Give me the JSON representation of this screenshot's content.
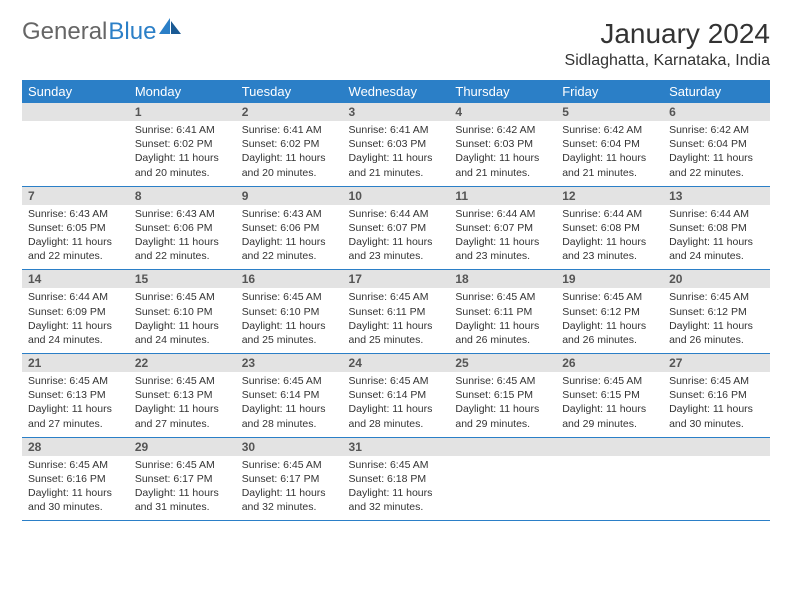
{
  "logo": {
    "general": "General",
    "blue": "Blue"
  },
  "title": "January 2024",
  "location": "Sidlaghatta, Karnataka, India",
  "colors": {
    "header_bg": "#2b7fc7",
    "header_text": "#ffffff",
    "daynum_bg": "#e3e3e3",
    "row_border": "#2b7fc7",
    "text": "#333333",
    "logo_blue": "#2b7fc7",
    "logo_gray": "#666666"
  },
  "day_names": [
    "Sunday",
    "Monday",
    "Tuesday",
    "Wednesday",
    "Thursday",
    "Friday",
    "Saturday"
  ],
  "weeks": [
    [
      {
        "n": "",
        "sr": "",
        "ss": "",
        "dl": ""
      },
      {
        "n": "1",
        "sr": "6:41 AM",
        "ss": "6:02 PM",
        "dl": "11 hours and 20 minutes."
      },
      {
        "n": "2",
        "sr": "6:41 AM",
        "ss": "6:02 PM",
        "dl": "11 hours and 20 minutes."
      },
      {
        "n": "3",
        "sr": "6:41 AM",
        "ss": "6:03 PM",
        "dl": "11 hours and 21 minutes."
      },
      {
        "n": "4",
        "sr": "6:42 AM",
        "ss": "6:03 PM",
        "dl": "11 hours and 21 minutes."
      },
      {
        "n": "5",
        "sr": "6:42 AM",
        "ss": "6:04 PM",
        "dl": "11 hours and 21 minutes."
      },
      {
        "n": "6",
        "sr": "6:42 AM",
        "ss": "6:04 PM",
        "dl": "11 hours and 22 minutes."
      }
    ],
    [
      {
        "n": "7",
        "sr": "6:43 AM",
        "ss": "6:05 PM",
        "dl": "11 hours and 22 minutes."
      },
      {
        "n": "8",
        "sr": "6:43 AM",
        "ss": "6:06 PM",
        "dl": "11 hours and 22 minutes."
      },
      {
        "n": "9",
        "sr": "6:43 AM",
        "ss": "6:06 PM",
        "dl": "11 hours and 22 minutes."
      },
      {
        "n": "10",
        "sr": "6:44 AM",
        "ss": "6:07 PM",
        "dl": "11 hours and 23 minutes."
      },
      {
        "n": "11",
        "sr": "6:44 AM",
        "ss": "6:07 PM",
        "dl": "11 hours and 23 minutes."
      },
      {
        "n": "12",
        "sr": "6:44 AM",
        "ss": "6:08 PM",
        "dl": "11 hours and 23 minutes."
      },
      {
        "n": "13",
        "sr": "6:44 AM",
        "ss": "6:08 PM",
        "dl": "11 hours and 24 minutes."
      }
    ],
    [
      {
        "n": "14",
        "sr": "6:44 AM",
        "ss": "6:09 PM",
        "dl": "11 hours and 24 minutes."
      },
      {
        "n": "15",
        "sr": "6:45 AM",
        "ss": "6:10 PM",
        "dl": "11 hours and 24 minutes."
      },
      {
        "n": "16",
        "sr": "6:45 AM",
        "ss": "6:10 PM",
        "dl": "11 hours and 25 minutes."
      },
      {
        "n": "17",
        "sr": "6:45 AM",
        "ss": "6:11 PM",
        "dl": "11 hours and 25 minutes."
      },
      {
        "n": "18",
        "sr": "6:45 AM",
        "ss": "6:11 PM",
        "dl": "11 hours and 26 minutes."
      },
      {
        "n": "19",
        "sr": "6:45 AM",
        "ss": "6:12 PM",
        "dl": "11 hours and 26 minutes."
      },
      {
        "n": "20",
        "sr": "6:45 AM",
        "ss": "6:12 PM",
        "dl": "11 hours and 26 minutes."
      }
    ],
    [
      {
        "n": "21",
        "sr": "6:45 AM",
        "ss": "6:13 PM",
        "dl": "11 hours and 27 minutes."
      },
      {
        "n": "22",
        "sr": "6:45 AM",
        "ss": "6:13 PM",
        "dl": "11 hours and 27 minutes."
      },
      {
        "n": "23",
        "sr": "6:45 AM",
        "ss": "6:14 PM",
        "dl": "11 hours and 28 minutes."
      },
      {
        "n": "24",
        "sr": "6:45 AM",
        "ss": "6:14 PM",
        "dl": "11 hours and 28 minutes."
      },
      {
        "n": "25",
        "sr": "6:45 AM",
        "ss": "6:15 PM",
        "dl": "11 hours and 29 minutes."
      },
      {
        "n": "26",
        "sr": "6:45 AM",
        "ss": "6:15 PM",
        "dl": "11 hours and 29 minutes."
      },
      {
        "n": "27",
        "sr": "6:45 AM",
        "ss": "6:16 PM",
        "dl": "11 hours and 30 minutes."
      }
    ],
    [
      {
        "n": "28",
        "sr": "6:45 AM",
        "ss": "6:16 PM",
        "dl": "11 hours and 30 minutes."
      },
      {
        "n": "29",
        "sr": "6:45 AM",
        "ss": "6:17 PM",
        "dl": "11 hours and 31 minutes."
      },
      {
        "n": "30",
        "sr": "6:45 AM",
        "ss": "6:17 PM",
        "dl": "11 hours and 32 minutes."
      },
      {
        "n": "31",
        "sr": "6:45 AM",
        "ss": "6:18 PM",
        "dl": "11 hours and 32 minutes."
      },
      {
        "n": "",
        "sr": "",
        "ss": "",
        "dl": ""
      },
      {
        "n": "",
        "sr": "",
        "ss": "",
        "dl": ""
      },
      {
        "n": "",
        "sr": "",
        "ss": "",
        "dl": ""
      }
    ]
  ],
  "labels": {
    "sunrise": "Sunrise:",
    "sunset": "Sunset:",
    "daylight": "Daylight:"
  }
}
